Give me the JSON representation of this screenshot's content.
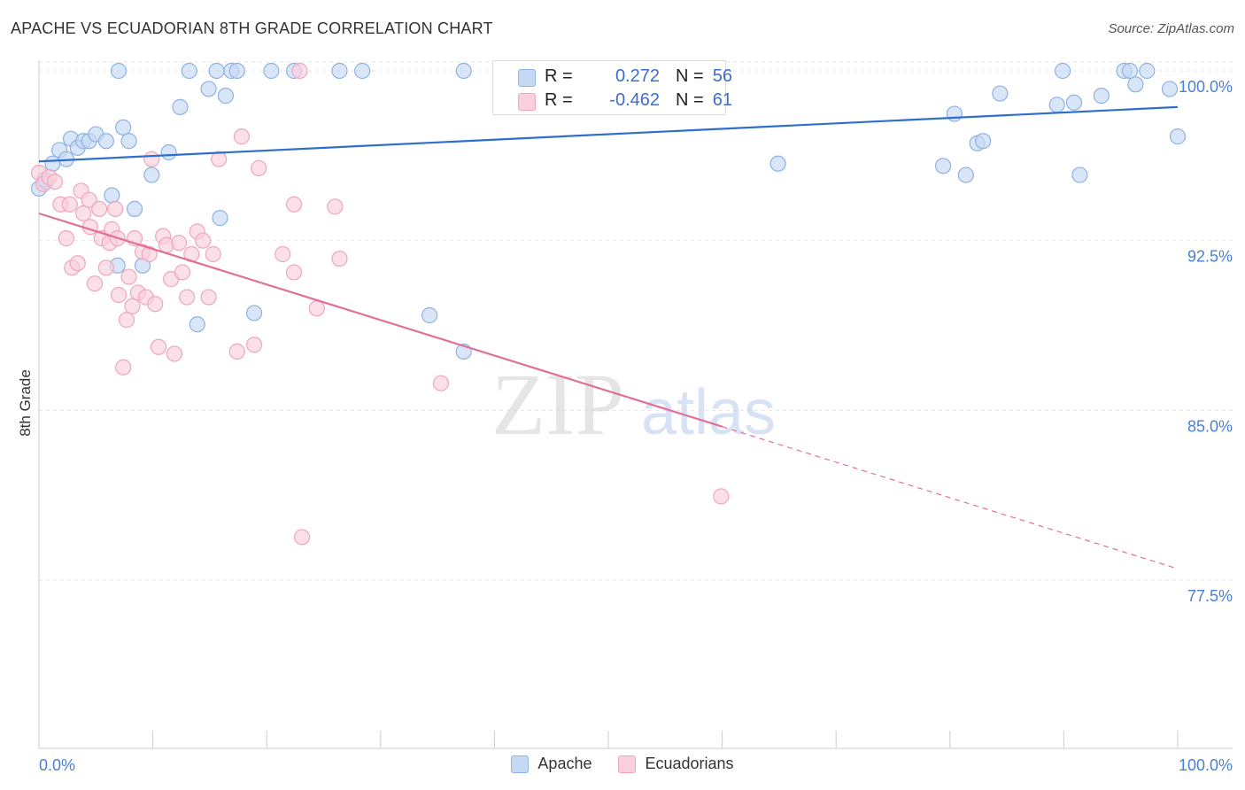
{
  "header": {
    "title": "APACHE VS ECUADORIAN 8TH GRADE CORRELATION CHART",
    "source": "Source: ZipAtlas.com"
  },
  "watermark": {
    "zip": "ZIP",
    "atlas": "atlas"
  },
  "stats": {
    "apache": {
      "r_label": "R =",
      "r_value": "0.272",
      "n_label": "N =",
      "n_value": "56"
    },
    "ecuadorians": {
      "r_label": "R =",
      "r_value": "-0.462",
      "n_label": "N =",
      "n_value": "61"
    }
  },
  "legend": {
    "apache": "Apache",
    "ecuadorians": "Ecuadorians"
  },
  "colors": {
    "apache_fill": "#c5d9f5",
    "apache_stroke": "#8fb1e3",
    "apache_line": "#2f6fcc",
    "ecuador_fill": "#f9d0dc",
    "ecuador_stroke": "#eea6bc",
    "ecuador_line": "#e07098",
    "tick_label": "#4a7fd4",
    "grid": "#e6e6e6"
  },
  "chart_data": {
    "type": "scatter",
    "title": "APACHE VS ECUADORIAN 8TH GRADE CORRELATION CHART",
    "xlabel": "",
    "ylabel": "8th Grade",
    "xlim": [
      0,
      100
    ],
    "ylim": [
      70.0,
      100.8
    ],
    "x_tick_labels": [
      "0.0%",
      "100.0%"
    ],
    "y_ticks": [
      100.0,
      92.5,
      85.0,
      77.5
    ],
    "y_tick_labels": [
      "100.0%",
      "92.5%",
      "85.0%",
      "77.5%"
    ],
    "grid": true,
    "series": [
      {
        "name": "Apache",
        "trend": {
          "x": [
            0,
            100
          ],
          "y": [
            96.0,
            98.4
          ],
          "dashed_from": null
        },
        "points": [
          [
            0.0,
            94.8
          ],
          [
            0.6,
            95.1
          ],
          [
            1.2,
            95.9
          ],
          [
            1.8,
            96.5
          ],
          [
            2.4,
            96.1
          ],
          [
            2.8,
            97.0
          ],
          [
            3.4,
            96.6
          ],
          [
            3.9,
            96.9
          ],
          [
            4.4,
            96.9
          ],
          [
            5.0,
            97.2
          ],
          [
            5.9,
            96.9
          ],
          [
            7.4,
            97.5
          ],
          [
            7.9,
            96.9
          ],
          [
            6.4,
            94.5
          ],
          [
            8.4,
            93.9
          ],
          [
            9.1,
            91.4
          ],
          [
            9.9,
            95.4
          ],
          [
            11.4,
            96.4
          ],
          [
            12.4,
            98.4
          ],
          [
            13.9,
            88.8
          ],
          [
            14.9,
            99.2
          ],
          [
            15.9,
            93.5
          ],
          [
            16.4,
            98.9
          ],
          [
            18.9,
            89.3
          ],
          [
            6.9,
            91.4
          ],
          [
            22.4,
            100.0
          ],
          [
            26.4,
            100.0
          ],
          [
            28.4,
            100.0
          ],
          [
            34.3,
            89.2
          ],
          [
            37.3,
            87.6
          ],
          [
            37.3,
            100.0
          ],
          [
            7.0,
            100.0
          ],
          [
            13.2,
            100.0
          ],
          [
            15.6,
            100.0
          ],
          [
            16.9,
            100.0
          ],
          [
            17.4,
            100.0
          ],
          [
            20.4,
            100.0
          ],
          [
            64.9,
            95.9
          ],
          [
            79.4,
            95.8
          ],
          [
            80.4,
            98.1
          ],
          [
            81.4,
            95.4
          ],
          [
            82.4,
            96.8
          ],
          [
            82.9,
            96.9
          ],
          [
            84.4,
            99.0
          ],
          [
            89.4,
            98.5
          ],
          [
            89.9,
            100.0
          ],
          [
            90.9,
            98.6
          ],
          [
            91.4,
            95.4
          ],
          [
            93.3,
            98.9
          ],
          [
            95.3,
            100.0
          ],
          [
            95.8,
            100.0
          ],
          [
            96.3,
            99.4
          ],
          [
            97.3,
            100.0
          ],
          [
            99.3,
            99.2
          ],
          [
            100.0,
            97.1
          ],
          [
            0.5,
            95.2
          ]
        ]
      },
      {
        "name": "Ecuadorians",
        "trend": {
          "x": [
            0,
            100
          ],
          "y": [
            93.7,
            78.0
          ],
          "dashed_from": 60
        },
        "points": [
          [
            0.0,
            95.5
          ],
          [
            0.4,
            95.0
          ],
          [
            0.9,
            95.3
          ],
          [
            1.4,
            95.1
          ],
          [
            1.9,
            94.1
          ],
          [
            2.4,
            92.6
          ],
          [
            2.7,
            94.1
          ],
          [
            2.9,
            91.3
          ],
          [
            3.4,
            91.5
          ],
          [
            3.7,
            94.7
          ],
          [
            3.9,
            93.7
          ],
          [
            4.4,
            94.3
          ],
          [
            4.5,
            93.1
          ],
          [
            4.9,
            90.6
          ],
          [
            5.3,
            93.9
          ],
          [
            5.5,
            92.6
          ],
          [
            5.9,
            91.3
          ],
          [
            6.2,
            92.4
          ],
          [
            6.4,
            93.0
          ],
          [
            6.7,
            93.9
          ],
          [
            6.9,
            92.6
          ],
          [
            7.0,
            90.1
          ],
          [
            7.4,
            86.9
          ],
          [
            7.7,
            89.0
          ],
          [
            7.9,
            90.9
          ],
          [
            8.2,
            89.6
          ],
          [
            8.4,
            92.6
          ],
          [
            8.7,
            90.2
          ],
          [
            9.1,
            92.0
          ],
          [
            9.4,
            90.0
          ],
          [
            9.7,
            91.9
          ],
          [
            9.9,
            96.1
          ],
          [
            10.2,
            89.7
          ],
          [
            10.5,
            87.8
          ],
          [
            10.9,
            92.7
          ],
          [
            11.2,
            92.3
          ],
          [
            11.6,
            90.8
          ],
          [
            11.9,
            87.5
          ],
          [
            12.3,
            92.4
          ],
          [
            12.6,
            91.1
          ],
          [
            13.0,
            90.0
          ],
          [
            13.4,
            91.9
          ],
          [
            13.9,
            92.9
          ],
          [
            14.4,
            92.5
          ],
          [
            14.9,
            90.0
          ],
          [
            15.3,
            91.9
          ],
          [
            15.8,
            96.1
          ],
          [
            17.4,
            87.6
          ],
          [
            17.8,
            97.1
          ],
          [
            18.9,
            87.9
          ],
          [
            19.3,
            95.7
          ],
          [
            21.4,
            91.9
          ],
          [
            22.4,
            91.1
          ],
          [
            22.9,
            100.0
          ],
          [
            22.4,
            94.1
          ],
          [
            24.4,
            89.5
          ],
          [
            26.0,
            94.0
          ],
          [
            26.4,
            91.7
          ],
          [
            35.3,
            86.2
          ],
          [
            59.9,
            81.2
          ],
          [
            23.1,
            79.4
          ]
        ]
      }
    ]
  }
}
